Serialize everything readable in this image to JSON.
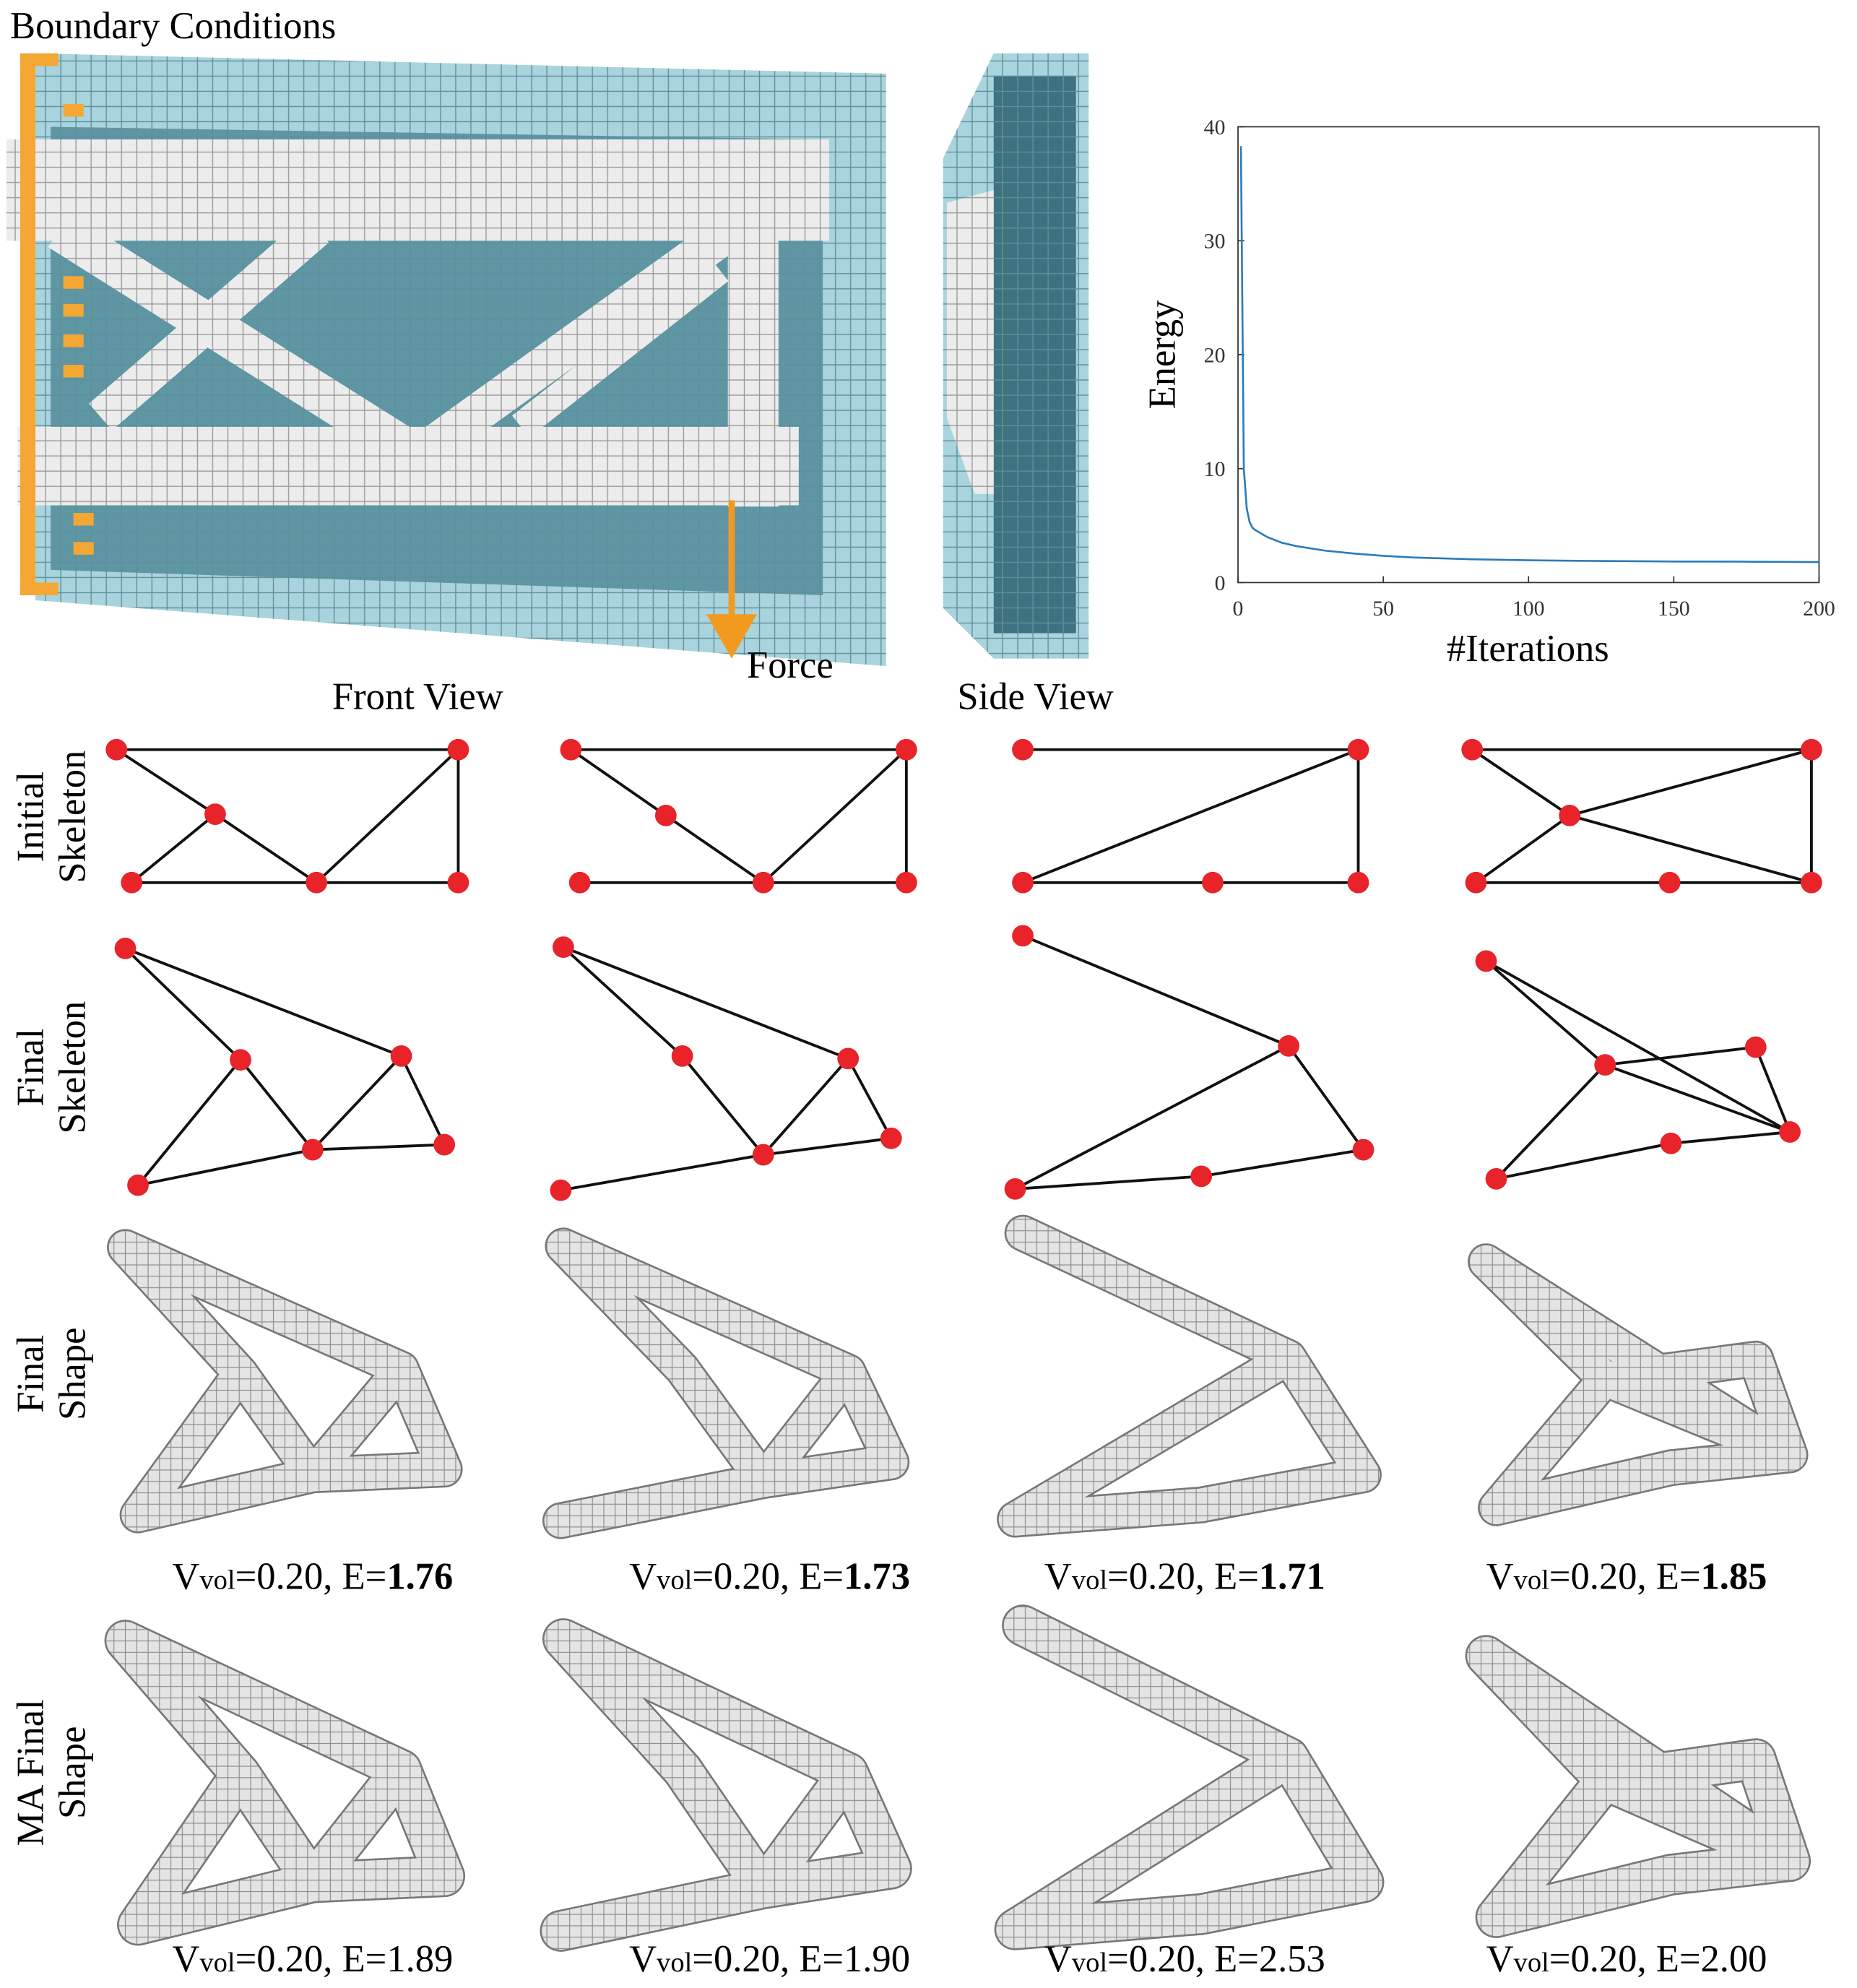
{
  "labels": {
    "boundary_conditions": "Boundary Conditions",
    "force": "Force",
    "front_view": "Front View",
    "side_view": "Side View"
  },
  "chart_data": {
    "type": "line",
    "x_label": "#Iterations",
    "y_label": "Energy",
    "x": [
      1,
      2,
      3,
      4,
      5,
      6,
      8,
      10,
      15,
      20,
      30,
      40,
      50,
      60,
      80,
      100,
      120,
      150,
      175,
      200
    ],
    "values": [
      38.3,
      10,
      6.5,
      5.3,
      4.8,
      4.6,
      4.3,
      4.0,
      3.5,
      3.2,
      2.8,
      2.55,
      2.35,
      2.2,
      2.05,
      1.95,
      1.9,
      1.85,
      1.83,
      1.8
    ],
    "color": "#2b7bba",
    "xlim": [
      0,
      200
    ],
    "ylim": [
      0,
      40
    ],
    "xticks": [
      0,
      50,
      100,
      150,
      200
    ],
    "yticks": [
      0,
      10,
      20,
      30,
      40
    ]
  },
  "row_labels": [
    [
      "Initial",
      "Skeleton"
    ],
    [
      "Final",
      "Skeleton"
    ],
    [
      "Final",
      "Shape"
    ],
    [
      "MA Final",
      "Shape"
    ]
  ],
  "captions": {
    "final": [
      {
        "v": "V",
        "sub": "vol",
        "eq": "=0.20, E=",
        "e": "1.76"
      },
      {
        "v": "V",
        "sub": "vol",
        "eq": "=0.20, E=",
        "e": "1.73"
      },
      {
        "v": "V",
        "sub": "vol",
        "eq": "=0.20, E=",
        "e": "1.71"
      },
      {
        "v": "V",
        "sub": "vol",
        "eq": "=0.20, E=",
        "e": "1.85"
      }
    ],
    "ma": [
      {
        "v": "V",
        "sub": "vol",
        "eq": "=0.20, E=",
        "e": "1.89"
      },
      {
        "v": "V",
        "sub": "vol",
        "eq": "=0.20, E=",
        "e": "1.90"
      },
      {
        "v": "V",
        "sub": "vol",
        "eq": "=0.20, E=",
        "e": "2.53"
      },
      {
        "v": "V",
        "sub": "vol",
        "eq": "=0.20, E=",
        "e": "2.00"
      }
    ]
  }
}
